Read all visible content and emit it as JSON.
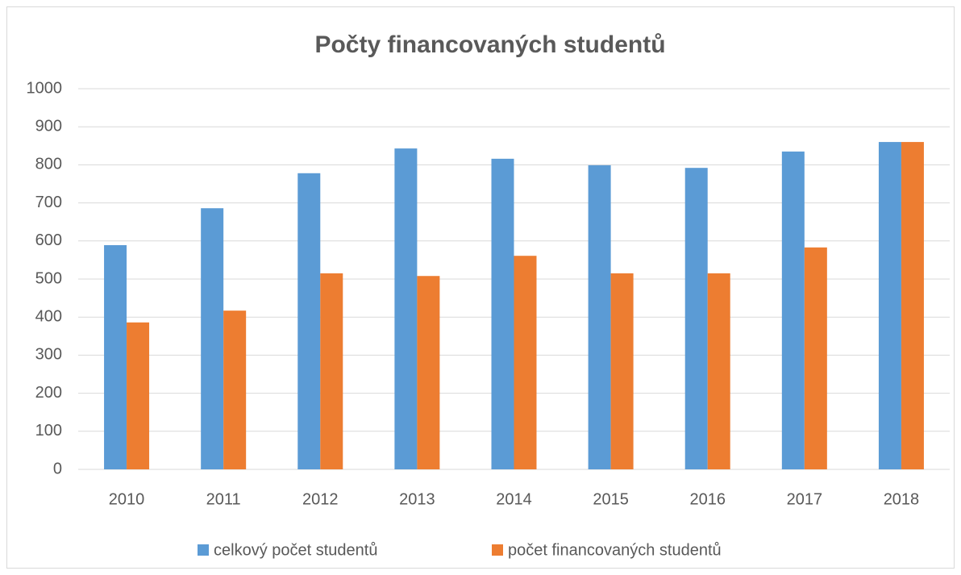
{
  "chart_data": {
    "type": "bar",
    "title": "Počty financovaných studentů",
    "categories": [
      "2010",
      "2011",
      "2012",
      "2013",
      "2014",
      "2015",
      "2016",
      "2017",
      "2018"
    ],
    "series": [
      {
        "name": "celkový počet studentů",
        "color": "#5b9bd5",
        "values": [
          589,
          686,
          778,
          843,
          816,
          799,
          792,
          835,
          860
        ]
      },
      {
        "name": "počet financovaných studentů",
        "color": "#ed7d31",
        "values": [
          386,
          417,
          515,
          508,
          561,
          515,
          515,
          583,
          860
        ]
      }
    ],
    "ylim": [
      0,
      1000
    ],
    "yticks": [
      0,
      100,
      200,
      300,
      400,
      500,
      600,
      700,
      800,
      900,
      1000
    ],
    "grid": true,
    "legend": "bottom"
  }
}
